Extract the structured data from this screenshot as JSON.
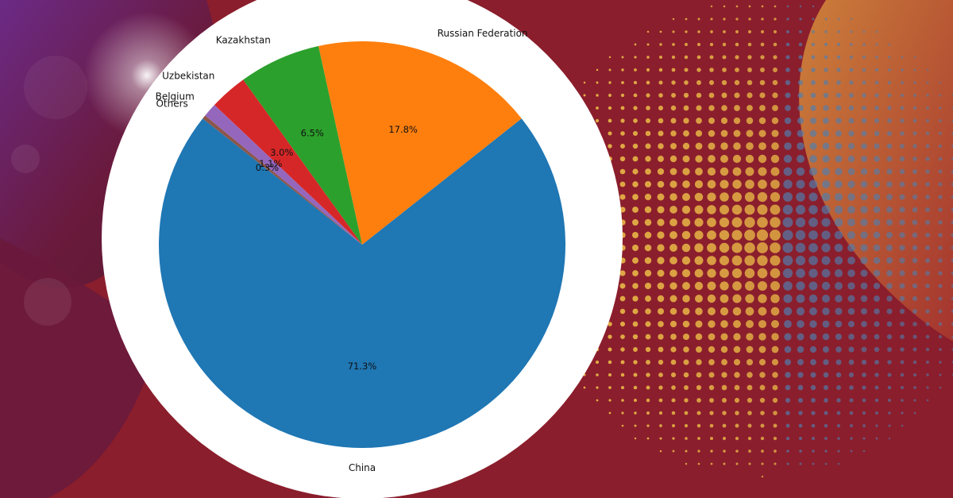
{
  "chart_data": {
    "type": "pie",
    "categories": [
      "China",
      "Russian Federation",
      "Kazakhstan",
      "Uzbekistan",
      "Belgium",
      "Others"
    ],
    "values": [
      71.3,
      17.8,
      6.5,
      3.0,
      1.1,
      0.3
    ],
    "value_labels": [
      "71.3%",
      "17.8%",
      "6.5%",
      "3.0%",
      "1.1%",
      "0.3%"
    ],
    "colors": [
      "#1f77b4",
      "#ff7f0e",
      "#2ca02c",
      "#d62728",
      "#9467bd",
      "#8c564b"
    ],
    "start_category": "China",
    "direction": "counterclockwise",
    "legend": "none",
    "title": "",
    "xlabel": "",
    "ylabel": ""
  },
  "background": {
    "colors": [
      "#8b1e2c",
      "#6a1a3c",
      "#5b2a7a",
      "#c97a3a",
      "#f3c94a",
      "#4f7fb0"
    ]
  }
}
